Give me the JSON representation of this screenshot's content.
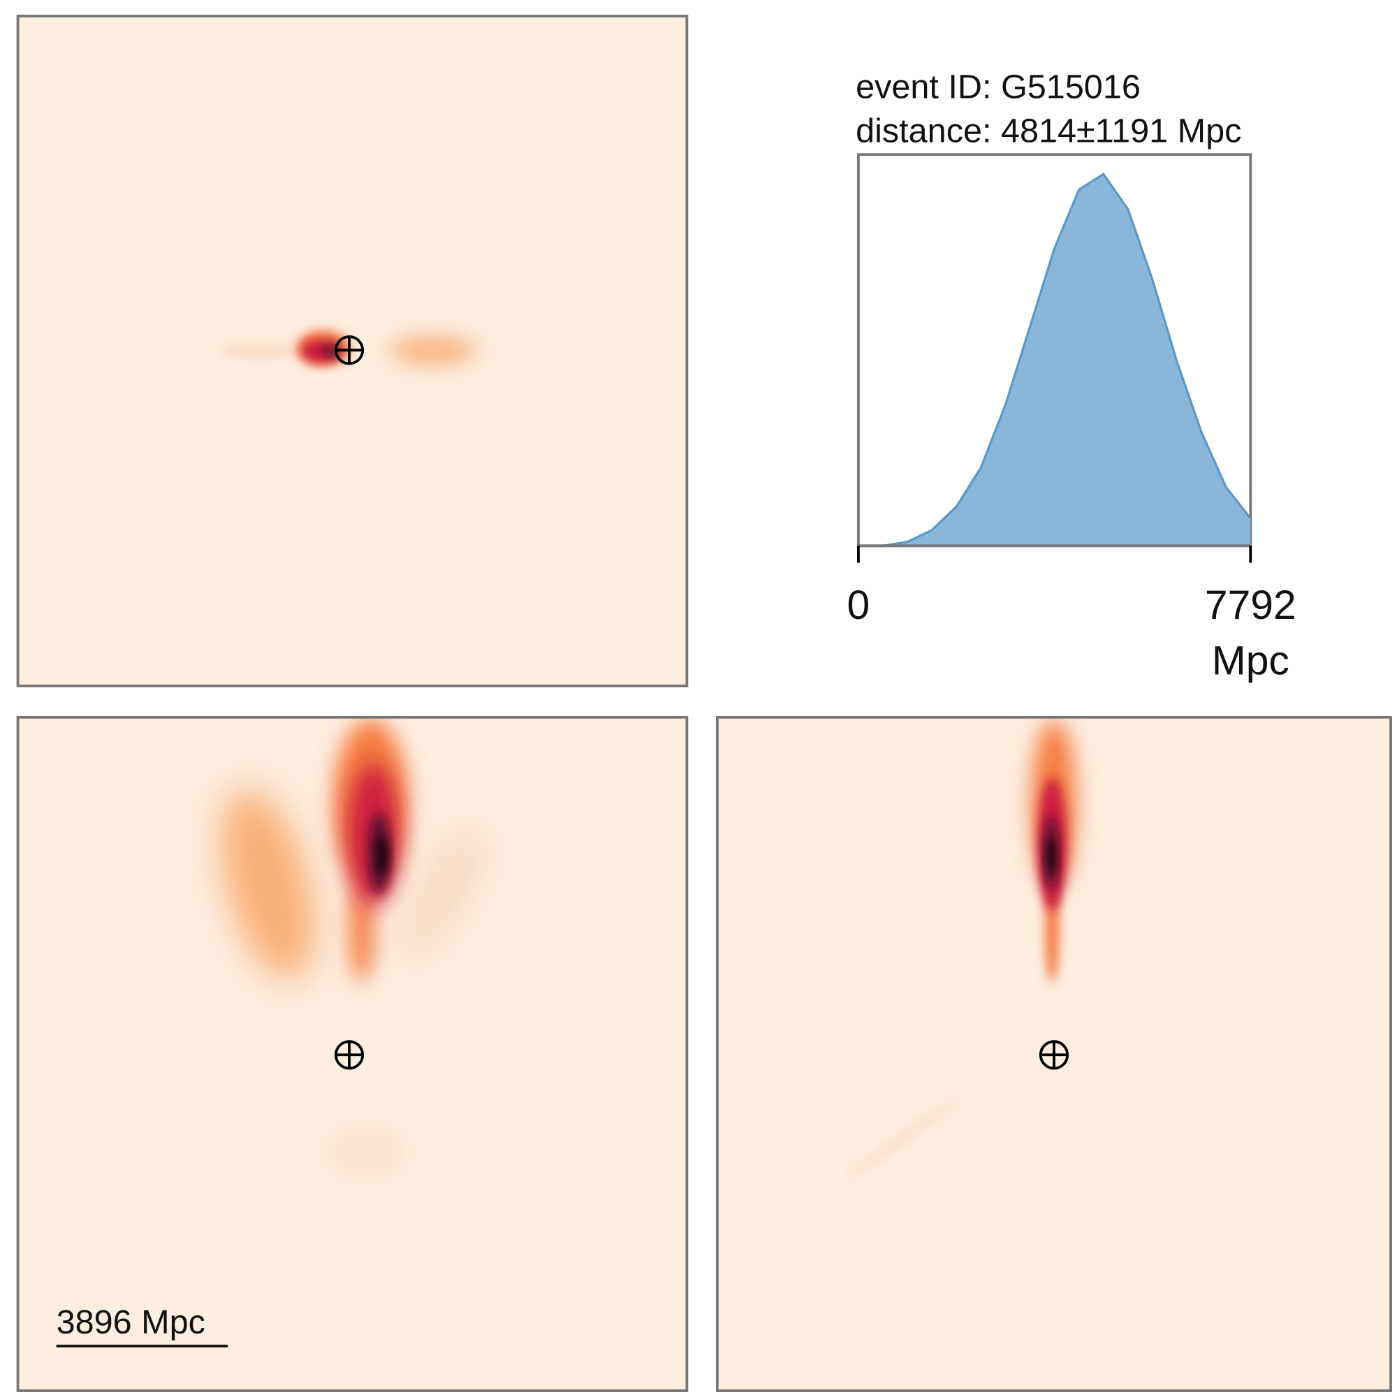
{
  "chart_data": {
    "type": "area",
    "annotations": [
      "event ID: G515016",
      "distance: 4814±1191 Mpc"
    ],
    "x": [
      0,
      487,
      974,
      1461,
      1948,
      2435,
      2922,
      3409,
      3896,
      4383,
      4870,
      5357,
      5844,
      6331,
      6818,
      7305,
      7792
    ],
    "values": [
      0.0,
      0.0,
      0.01,
      0.04,
      0.1,
      0.2,
      0.36,
      0.56,
      0.76,
      0.91,
      0.95,
      0.86,
      0.68,
      0.47,
      0.29,
      0.15,
      0.07
    ],
    "color": "#8ab6d9",
    "line_color": "#5b97c6",
    "xlim": [
      0,
      7792
    ],
    "xticks": [
      0,
      7792
    ],
    "ylim": [
      0,
      1
    ],
    "xlabel": "Mpc"
  },
  "scale_bar": {
    "label": "3896 Mpc"
  }
}
